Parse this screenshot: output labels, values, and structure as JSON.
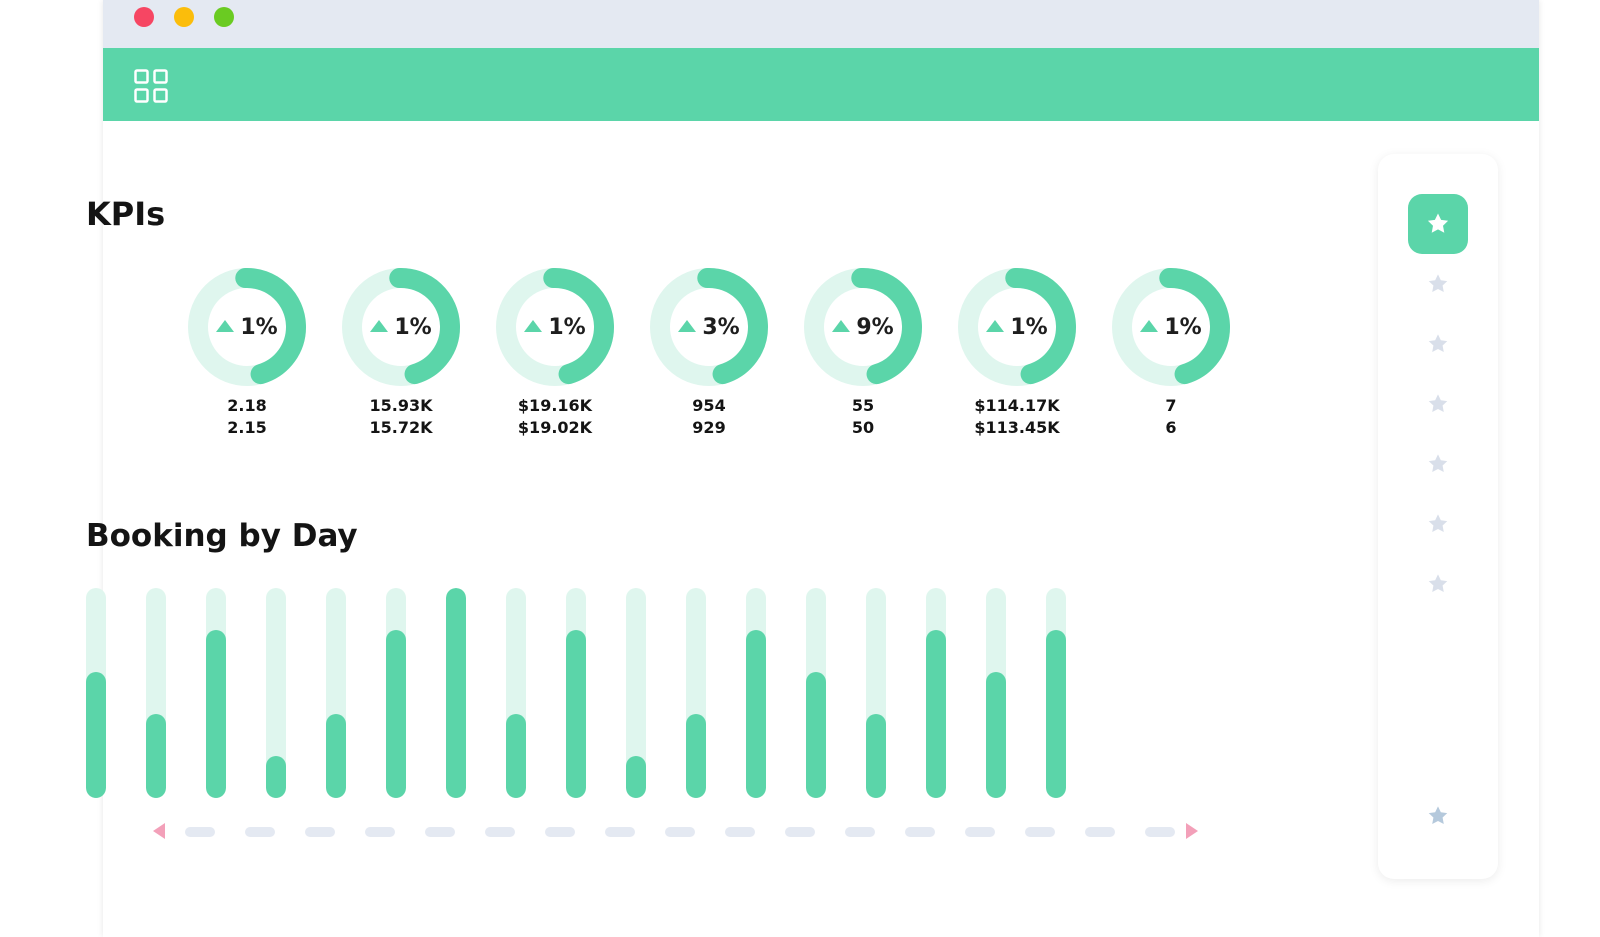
{
  "window": {
    "controls": [
      "close",
      "minimize",
      "maximize"
    ],
    "colors": {
      "close": "#f64663",
      "minimize": "#fbbd0b",
      "maximize": "#6acb22"
    }
  },
  "appbar": {
    "icon": "grid-icon",
    "color": "#5bd5a9"
  },
  "kpis": {
    "title": "KPIs",
    "items": [
      {
        "pct": "1%",
        "current": "2.18",
        "previous": "2.15"
      },
      {
        "pct": "1%",
        "current": "15.93K",
        "previous": "15.72K"
      },
      {
        "pct": "1%",
        "current": "$19.16K",
        "previous": "$19.02K"
      },
      {
        "pct": "3%",
        "current": "954",
        "previous": "929"
      },
      {
        "pct": "9%",
        "current": "55",
        "previous": "50"
      },
      {
        "pct": "1%",
        "current": "$114.17K",
        "previous": "$113.45K"
      },
      {
        "pct": "1%",
        "current": "7",
        "previous": "6"
      }
    ]
  },
  "booking": {
    "title": "Booking by Day"
  },
  "chart_data": {
    "type": "bar",
    "title": "Booking by Day",
    "categories": [
      "",
      "",
      "",
      "",
      "",
      "",
      "",
      "",
      "",
      "",
      "",
      "",
      "",
      "",
      "",
      "",
      ""
    ],
    "values": [
      60,
      40,
      80,
      20,
      40,
      80,
      100,
      40,
      80,
      20,
      40,
      80,
      60,
      40,
      80,
      60,
      80
    ],
    "ylim": [
      0,
      100
    ],
    "grid": false,
    "colors": {
      "fill": "#5bd5a9",
      "track": "#dff6ee"
    }
  },
  "sidebar": {
    "items": [
      "star-icon",
      "star-icon",
      "star-icon",
      "star-icon",
      "star-icon",
      "star-icon",
      "star-icon",
      "star-icon"
    ],
    "active_index": 0,
    "colors": {
      "active_bg": "#5bd5a9",
      "inactive_star": "#d9dfea",
      "bottom_star": "#b5c9dc"
    }
  }
}
